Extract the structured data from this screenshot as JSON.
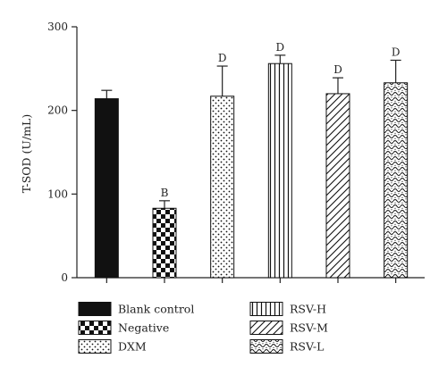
{
  "chart_data": {
    "type": "bar",
    "title": "",
    "xlabel": "",
    "ylabel": "T-SOD (U/mL)",
    "ylim": [
      0,
      300
    ],
    "yticks": [
      0,
      100,
      200,
      300
    ],
    "grid": false,
    "legend_position": "bottom",
    "categories": [
      "Blank control",
      "Negative",
      "DXM",
      "RSV-H",
      "RSV-M",
      "RSV-L"
    ],
    "values": [
      214,
      83,
      217,
      256,
      220,
      233
    ],
    "error": [
      10,
      9,
      36,
      10,
      19,
      27
    ],
    "significance": [
      "",
      "B",
      "D",
      "D",
      "D",
      "D"
    ],
    "patterns": [
      "solid",
      "checker",
      "dots",
      "vertical-lines",
      "diagonal-lines",
      "wavy"
    ],
    "colors": {
      "bar_fill": "#111111",
      "axis": "#222222",
      "background": "#ffffff"
    }
  }
}
